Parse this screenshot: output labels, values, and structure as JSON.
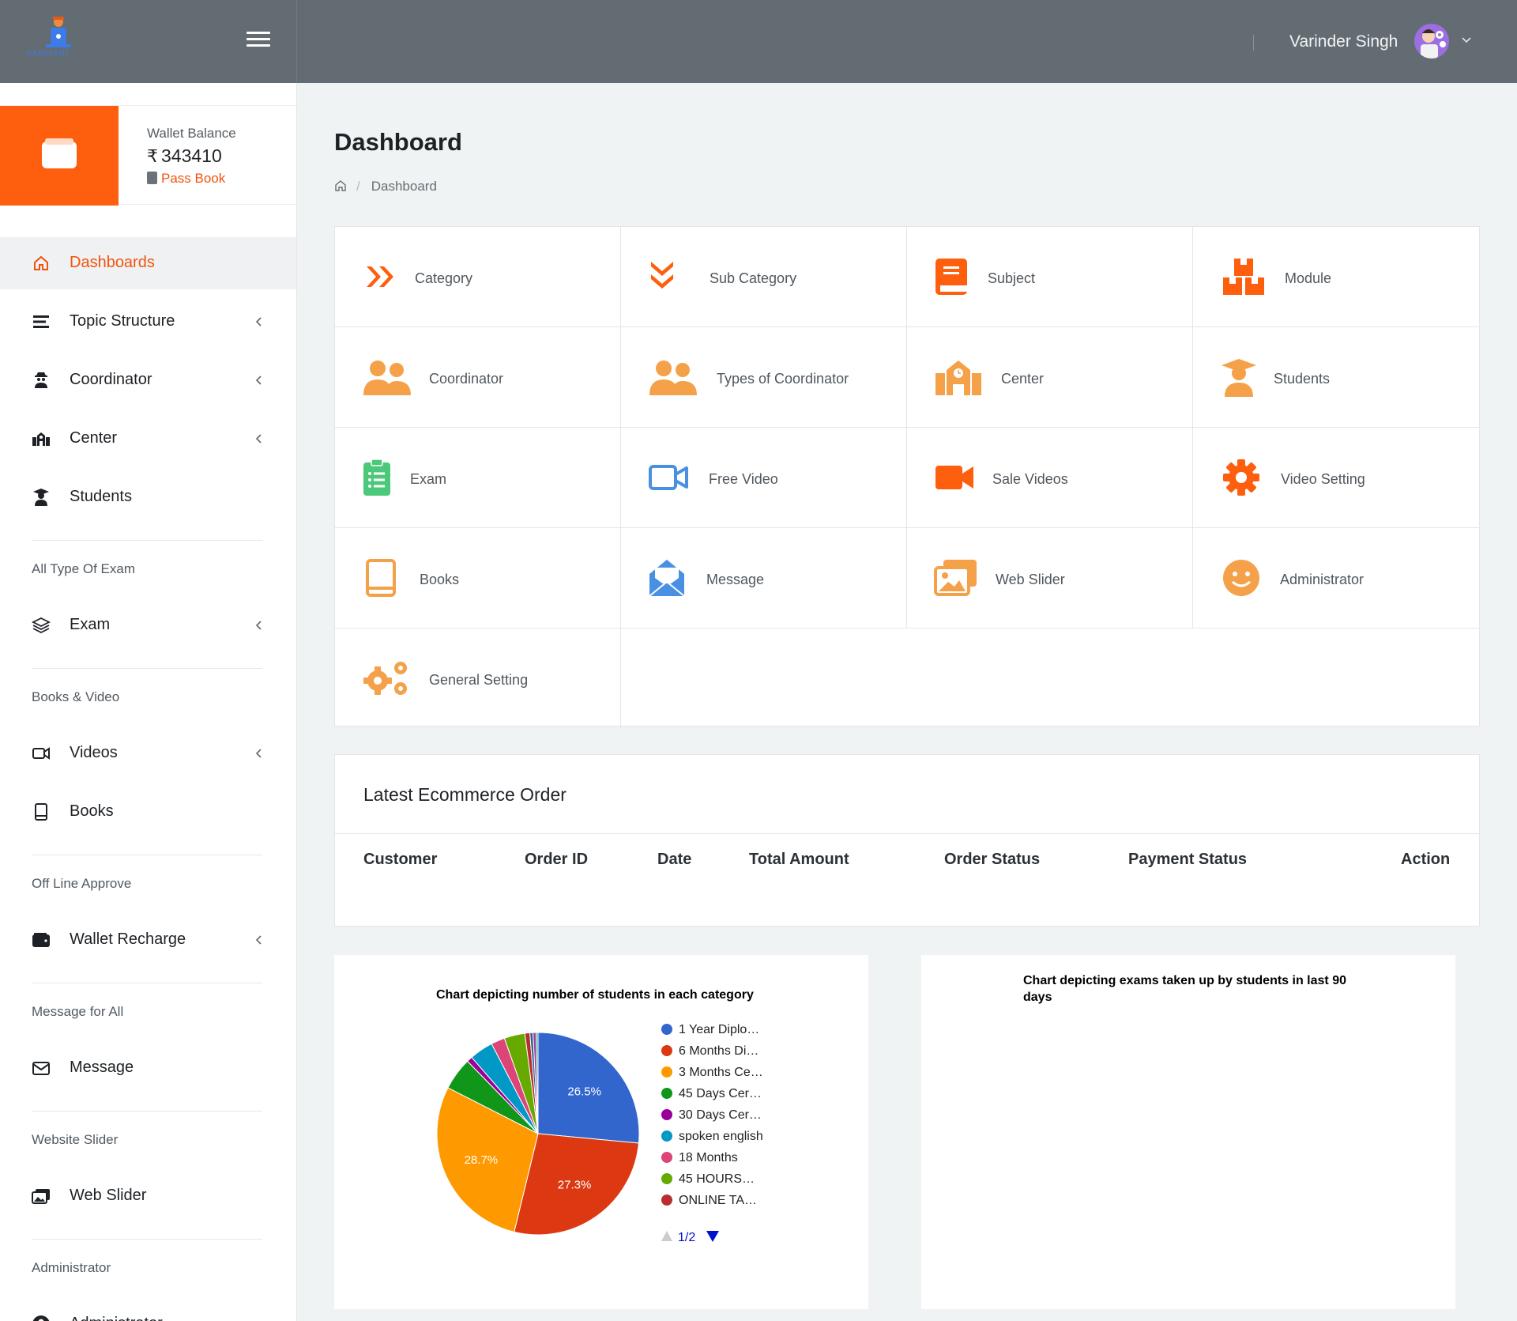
{
  "brand": {
    "logo_text": "EXAMCENT"
  },
  "topbar": {
    "user_name": "Varinder Singh"
  },
  "wallet": {
    "label": "Wallet Balance",
    "currency_symbol": "₹",
    "amount": "343410",
    "passbook_label": "Pass Book"
  },
  "sidebar": {
    "items": [
      {
        "label": "Dashboards",
        "icon": "home-icon",
        "active": true,
        "has_submenu": false
      },
      {
        "label": "Topic Structure",
        "icon": "list-icon",
        "has_submenu": true
      },
      {
        "label": "Coordinator",
        "icon": "user-secret-icon",
        "has_submenu": true
      },
      {
        "label": "Center",
        "icon": "school-icon",
        "has_submenu": true
      },
      {
        "label": "Students",
        "icon": "graduate-icon",
        "has_submenu": false
      },
      {
        "label": "Exam",
        "icon": "layers-icon",
        "has_submenu": true
      },
      {
        "label": "Videos",
        "icon": "video-icon",
        "has_submenu": true
      },
      {
        "label": "Books",
        "icon": "book-icon",
        "has_submenu": false
      },
      {
        "label": "Wallet Recharge",
        "icon": "wallet-icon",
        "has_submenu": true
      },
      {
        "label": "Message",
        "icon": "envelope-icon",
        "has_submenu": false
      },
      {
        "label": "Web Slider",
        "icon": "images-icon",
        "has_submenu": false
      },
      {
        "label": "Administrator",
        "icon": "user-circle-icon",
        "has_submenu": false
      }
    ],
    "sections": [
      "All Type Of Exam",
      "Books & Video",
      "Off Line Approve",
      "Message for All",
      "Website Slider",
      "Administrator"
    ]
  },
  "page": {
    "title": "Dashboard",
    "breadcrumb": "Dashboard"
  },
  "tiles": [
    {
      "label": "Category",
      "icon": "double-chevron-right-icon",
      "color": "#fe5f0e"
    },
    {
      "label": "Sub Category",
      "icon": "double-chevron-down-icon",
      "color": "#fe5f0e"
    },
    {
      "label": "Subject",
      "icon": "book-icon",
      "color": "#fe5f0e"
    },
    {
      "label": "Module",
      "icon": "boxes-icon",
      "color": "#fe5f0e"
    },
    {
      "label": "Coordinator",
      "icon": "users-icon",
      "color": "#f4a14a"
    },
    {
      "label": "Types of Coordinator",
      "icon": "users-icon",
      "color": "#f4a14a"
    },
    {
      "label": "Center",
      "icon": "school-icon",
      "color": "#f4a14a"
    },
    {
      "label": "Students",
      "icon": "graduate-icon",
      "color": "#f4a14a"
    },
    {
      "label": "Exam",
      "icon": "clipboard-list-icon",
      "color": "#4cc87a"
    },
    {
      "label": "Free Video",
      "icon": "video-outline-icon",
      "color": "#4a90e2"
    },
    {
      "label": "Sale Videos",
      "icon": "video-icon",
      "color": "#fe5f0e"
    },
    {
      "label": "Video Setting",
      "icon": "gear-icon",
      "color": "#fe5f0e"
    },
    {
      "label": "Books",
      "icon": "book-outline-icon",
      "color": "#f4a14a"
    },
    {
      "label": "Message",
      "icon": "envelope-open-icon",
      "color": "#4a90e2"
    },
    {
      "label": "Web Slider",
      "icon": "images-icon",
      "color": "#f4a14a"
    },
    {
      "label": "Administrator",
      "icon": "smile-icon",
      "color": "#f4a14a"
    },
    {
      "label": "General Setting",
      "icon": "cogs-icon",
      "color": "#f4a14a"
    }
  ],
  "orders": {
    "title": "Latest Ecommerce Order",
    "columns": [
      "Customer",
      "Order ID",
      "Date",
      "Total Amount",
      "Order Status",
      "Payment Status",
      "Action"
    ],
    "rows": []
  },
  "chart_data": [
    {
      "type": "pie",
      "title": "Chart depicting number of students in each category",
      "legend_position": "right",
      "legend_page": "1/2",
      "slices": [
        {
          "label": "1 Year Diplo…",
          "percent": 26.5,
          "color": "#3366cc",
          "show_label": true
        },
        {
          "label": "6 Months Di…",
          "percent": 27.3,
          "color": "#dc3912",
          "show_label": true
        },
        {
          "label": "3 Months Ce…",
          "percent": 28.7,
          "color": "#ff9900",
          "show_label": true
        },
        {
          "label": "45 Days Cer…",
          "percent": 5.2,
          "color": "#109618",
          "show_label": false
        },
        {
          "label": "30 Days Cer…",
          "percent": 0.9,
          "color": "#990099",
          "show_label": false
        },
        {
          "label": "spoken english",
          "percent": 3.8,
          "color": "#0099c6",
          "show_label": false
        },
        {
          "label": "18 Months",
          "percent": 2.2,
          "color": "#dd4477",
          "show_label": false
        },
        {
          "label": "45 HOURS…",
          "percent": 3.3,
          "color": "#66aa00",
          "show_label": false
        },
        {
          "label": "ONLINE TA…",
          "percent": 0.8,
          "color": "#b82e2e",
          "show_label": false
        },
        {
          "label": "",
          "percent": 0.5,
          "color": "#316395",
          "show_label": false
        },
        {
          "label": "",
          "percent": 0.5,
          "color": "#994499",
          "show_label": false
        },
        {
          "label": "",
          "percent": 0.3,
          "color": "#22aa99",
          "show_label": false
        }
      ]
    },
    {
      "type": "line",
      "title": "Chart depicting exams taken up by students in last 90 days",
      "series": []
    }
  ]
}
